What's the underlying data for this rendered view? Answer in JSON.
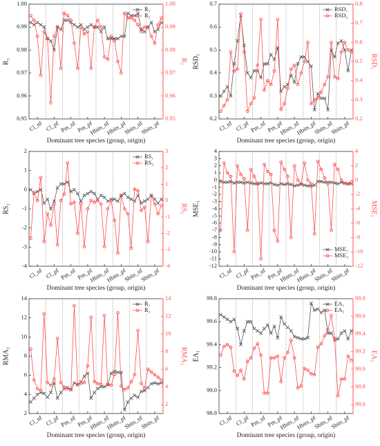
{
  "chart_data": [
    {
      "type": "line",
      "xlabel": "Dominant tree species (group, origin)",
      "ylabel": "R₁",
      "y2label": "R₂",
      "legend": "upper right",
      "categories": [
        null,
        null,
        "Cl_nf",
        null,
        null,
        null,
        null,
        "Cl_pf",
        null,
        null,
        null,
        null,
        "Pm_nf",
        null,
        null,
        null,
        null,
        "Pm_pf",
        null,
        null,
        null,
        null,
        "Hbits_nf",
        null,
        null,
        null,
        null,
        "Hbits_pf",
        null,
        null,
        null,
        null,
        "Sbits_nf",
        null,
        null,
        null,
        null,
        "Sbits_pf",
        null,
        null
      ],
      "ylim": [
        0.95,
        1
      ],
      "yticks": [
        0.95,
        0.96,
        0.97,
        0.98,
        0.99,
        {
          "value": 1,
          "label": "1.00"
        }
      ],
      "y2lim": [
        0.95,
        1
      ],
      "y2ticks": [
        0.95,
        0.96,
        0.97,
        0.98,
        0.99,
        {
          "value": 1,
          "label": "1.00"
        }
      ],
      "series": [
        {
          "name": "R₁",
          "color": "#555555",
          "marker": "x",
          "values": [
            0.992,
            0.991,
            0.992,
            0.991,
            0.99,
            0.985,
            0.984,
            0.98,
            0.99,
            0.989,
            0.993,
            0.993,
            0.992,
            0.991,
            0.99,
            0.991,
            0.989,
            0.99,
            0.991,
            0.99,
            0.99,
            0.988,
            0.99,
            0.985,
            0.985,
            0.985,
            0.985,
            0.986,
            0.986,
            0.996,
            0.995,
            0.995,
            0.996,
            0.989,
            0.988,
            0.99,
            0.992,
            0.988,
            0.989,
            0.992
          ]
        },
        {
          "name": "R₂",
          "color": "#ff4d4d",
          "marker": "o",
          "axis": "y2",
          "values": [
            0.995,
            0.993,
            0.986,
            0.969,
            0.988,
            0.985,
            0.957,
            0.986,
            0.99,
            0.972,
            0.996,
            0.995,
            0.993,
            0.983,
            0.972,
            0.99,
            0.987,
            0.988,
            0.972,
            0.99,
            0.993,
            0.99,
            0.977,
            0.976,
            0.986,
            0.984,
            0.975,
            0.97,
            0.996,
            0.994,
            0.994,
            0.993,
            0.991,
            0.988,
            0.99,
            0.99,
            0.986,
            0.983,
            0.991,
            0.994
          ]
        }
      ]
    },
    {
      "type": "line",
      "xlabel": "Dominant tree species (group, origin)",
      "ylabel": "RSD₁",
      "y2label": "RSD₂",
      "legend": "upper right",
      "categories": [
        null,
        null,
        "Cl_nf",
        null,
        null,
        null,
        null,
        "Cl_pf",
        null,
        null,
        null,
        null,
        "Pm_nf",
        null,
        null,
        null,
        null,
        "Pm_pf",
        null,
        null,
        null,
        null,
        "Hbits_nf",
        null,
        null,
        null,
        null,
        "Hbits_pf",
        null,
        null,
        null,
        null,
        "Sbits_nf",
        null,
        null,
        null,
        null,
        "Sbits_pf",
        null,
        null
      ],
      "ylim": [
        0.2,
        0.7
      ],
      "yticks": [
        0.2,
        0.3,
        0.4,
        0.5,
        0.6,
        0.7
      ],
      "y2lim": [
        0.2,
        0.8
      ],
      "y2ticks": [
        0.2,
        0.3,
        0.4,
        0.5,
        0.6,
        0.7,
        0.8
      ],
      "series": [
        {
          "name": "RSD₁",
          "color": "#555555",
          "marker": "x",
          "values": [
            0.3,
            0.32,
            0.34,
            0.3,
            0.44,
            0.54,
            0.65,
            0.52,
            0.4,
            0.38,
            0.41,
            0.41,
            0.38,
            0.44,
            0.44,
            0.48,
            0.46,
            0.51,
            0.32,
            0.34,
            0.35,
            0.39,
            0.36,
            0.44,
            0.47,
            0.47,
            0.45,
            0.43,
            0.24,
            0.31,
            0.29,
            0.29,
            0.24,
            0.5,
            0.47,
            0.53,
            0.54,
            0.5,
            0.41,
            0.5
          ]
        },
        {
          "name": "RSD₂",
          "color": "#ff4d4d",
          "marker": "o",
          "axis": "y2",
          "values": [
            0.24,
            0.27,
            0.3,
            0.55,
            0.45,
            0.46,
            0.75,
            0.55,
            0.24,
            0.28,
            0.31,
            0.48,
            0.72,
            0.35,
            0.4,
            0.38,
            0.45,
            0.72,
            0.25,
            0.28,
            0.36,
            0.46,
            0.48,
            0.38,
            0.44,
            0.5,
            0.6,
            0.28,
            0.3,
            0.31,
            0.34,
            0.38,
            0.42,
            0.6,
            0.42,
            0.41,
            0.55,
            0.6,
            0.56,
            0.55
          ]
        }
      ]
    },
    {
      "type": "line",
      "xlabel": "Dominant tree species (group, origin)",
      "ylabel": "RS₁",
      "y2label": "RS₂",
      "legend": "upper right",
      "categories": [
        null,
        null,
        "Cl_nf",
        null,
        null,
        null,
        null,
        "Cl_pf",
        null,
        null,
        null,
        null,
        "Pm_nf",
        null,
        null,
        null,
        null,
        "Pm_pf",
        null,
        null,
        null,
        null,
        "Hbits_nf",
        null,
        null,
        null,
        null,
        "Hbits_pf",
        null,
        null,
        null,
        null,
        "Sbits_nf",
        null,
        null,
        null,
        null,
        "Sbits_pf",
        null,
        null
      ],
      "ylim": [
        -4,
        2
      ],
      "yticks": [
        -4,
        -3,
        -2,
        -1,
        0,
        1,
        2
      ],
      "y2lim": [
        -4,
        3
      ],
      "y2ticks": [
        -4,
        -3,
        -2,
        -1,
        0,
        1,
        2,
        3
      ],
      "series": [
        {
          "name": "RS₁",
          "color": "#555555",
          "marker": "x",
          "values": [
            0.0,
            -0.2,
            -0.1,
            0.0,
            -0.7,
            -0.5,
            -1.0,
            -0.6,
            0.1,
            0.3,
            0.3,
            0.4,
            -0.1,
            0.0,
            -0.2,
            -0.6,
            -0.3,
            -0.2,
            -0.1,
            -0.2,
            -0.5,
            -0.3,
            -0.4,
            -0.6,
            -0.5,
            -0.5,
            -0.6,
            -0.3,
            -0.2,
            -0.4,
            -0.5,
            -0.6,
            -0.3,
            -0.7,
            -0.6,
            -0.5,
            -0.3,
            -0.5,
            -0.7,
            -0.5
          ]
        },
        {
          "name": "RS₂",
          "color": "#ff4d4d",
          "marker": "o",
          "axis": "y2",
          "values": [
            -2.3,
            0.5,
            0.0,
            1.4,
            -2.5,
            -0.8,
            -1.5,
            -0.2,
            -2.7,
            0.0,
            0.4,
            2.3,
            -0.2,
            -0.1,
            -2.0,
            -0.2,
            -2.8,
            -0.5,
            0.0,
            -0.1,
            0.0,
            -0.2,
            -2.8,
            -0.5,
            0.0,
            -1.2,
            -3.2,
            0.3,
            -0.5,
            -0.8,
            -2.9,
            0.7,
            0.6,
            -0.6,
            -0.4,
            -2.5,
            0.3,
            -0.2,
            -0.8,
            -0.3
          ]
        }
      ]
    },
    {
      "type": "line",
      "xlabel": "Dominant tree species (group, origin)",
      "ylabel": "MSE₁",
      "y2label": "MSE₂",
      "legend": "lower right",
      "categories": [
        null,
        null,
        "Cl_nf",
        null,
        null,
        null,
        null,
        "Cl_pf",
        null,
        null,
        null,
        null,
        "Pm_nf",
        null,
        null,
        null,
        null,
        "Pm_pf",
        null,
        null,
        null,
        null,
        "Hbits_nf",
        null,
        null,
        null,
        null,
        "Hbits_pf",
        null,
        null,
        null,
        null,
        "Sbits_nf",
        null,
        null,
        null,
        null,
        "Sbits_pf",
        null,
        null
      ],
      "ylim": [
        -12,
        4
      ],
      "yticks": [
        -12,
        -11,
        -10,
        -9,
        -8,
        -7,
        -6,
        -5,
        -4,
        -3,
        -2,
        -1,
        0,
        1,
        2,
        3,
        4
      ],
      "y2lim": [
        -12,
        4
      ],
      "y2ticks": [
        -12,
        -10,
        -8,
        -6,
        -4,
        -2,
        0,
        2,
        4
      ],
      "series": [
        {
          "name": "MSE₁",
          "color": "#555555",
          "marker": "x",
          "values": [
            -0.2,
            -0.3,
            -0.3,
            -0.2,
            -0.4,
            -0.3,
            -0.3,
            -0.4,
            -0.3,
            -0.4,
            -0.5,
            -0.5,
            -0.4,
            -0.5,
            -0.5,
            -0.4,
            -0.6,
            -0.7,
            -0.5,
            -0.6,
            -0.5,
            -0.6,
            -0.8,
            -0.7,
            -0.6,
            -0.7,
            -0.8,
            -0.8,
            -0.7,
            -0.2,
            -0.2,
            -0.3,
            -0.3,
            -0.3,
            -0.4,
            -0.5,
            -0.3,
            -0.4,
            -0.5,
            -0.5
          ]
        },
        {
          "name": "MSE₂",
          "color": "#ff4d4d",
          "marker": "o",
          "axis": "y2",
          "values": [
            -7.0,
            2.4,
            1.0,
            0.5,
            -10.0,
            2.0,
            0.8,
            0.2,
            -7.0,
            1.5,
            0.5,
            -0.5,
            -11.0,
            2.2,
            1.2,
            0.8,
            -7.0,
            -8.5,
            2.5,
            1.5,
            0.5,
            -8.0,
            2.0,
            0.0,
            -0.5,
            2.4,
            0.0,
            -0.5,
            -7.5,
            2.6,
            1.5,
            0.3,
            -0.5,
            -7.0,
            2.2,
            1.5,
            0.0,
            -0.5,
            -0.5,
            -0.3
          ]
        }
      ]
    },
    {
      "type": "line",
      "xlabel": "Dominant tree species (group, origin)",
      "ylabel": "RMA₁",
      "y2label": "RMA₂",
      "legend": "upper right",
      "categories": [
        null,
        null,
        "Cl_nf",
        null,
        null,
        null,
        null,
        "Cl_pf",
        null,
        null,
        null,
        null,
        "Pm_nf",
        null,
        null,
        null,
        null,
        "Pm_pf",
        null,
        null,
        null,
        null,
        "Hbits_nf",
        null,
        null,
        null,
        null,
        "Hbits_pf",
        null,
        null,
        null,
        null,
        "Sbits_nf",
        null,
        null,
        null,
        null,
        "Sbits_pf",
        null,
        null
      ],
      "ylim": [
        2,
        14
      ],
      "yticks": [
        2,
        4,
        6,
        8,
        10,
        12,
        14
      ],
      "y2lim": [
        1,
        14
      ],
      "y2ticks": [
        2,
        4,
        6,
        8,
        10,
        12,
        14
      ],
      "series": [
        {
          "name": "R₁",
          "color": "#555555",
          "marker": "x",
          "values": [
            3.2,
            3.6,
            4.0,
            4.2,
            4.1,
            3.7,
            4.2,
            5.2,
            3.6,
            4.2,
            4.6,
            4.7,
            4.5,
            5.2,
            5.0,
            5.3,
            5.9,
            6.2,
            3.6,
            4.2,
            4.6,
            4.8,
            4.8,
            5.0,
            6.2,
            6.4,
            6.3,
            6.3,
            2.4,
            3.2,
            3.6,
            3.9,
            3.7,
            4.3,
            4.4,
            4.7,
            5.1,
            5.2,
            5.1,
            5.2
          ]
        },
        {
          "name": "R₂",
          "color": "#ff4d4d",
          "marker": "o",
          "axis": "y2",
          "values": [
            8.3,
            4.8,
            3.8,
            3.6,
            12.3,
            4.5,
            4.2,
            4.9,
            9.5,
            4.5,
            4.0,
            3.8,
            3.7,
            13.2,
            4.3,
            4.4,
            4.5,
            6.4,
            11.9,
            4.6,
            4.4,
            4.3,
            12.1,
            4.3,
            4.2,
            5.4,
            12.4,
            4.1,
            3.7,
            3.9,
            4.6,
            5.4,
            10.4,
            4.4,
            3.9,
            6.0,
            5.7,
            5.4,
            5.1,
            4.8
          ]
        }
      ]
    },
    {
      "type": "line",
      "xlabel": "Dominant tree species (group, origin)",
      "ylabel": "EA₁",
      "y2label": "EA₂",
      "legend": "upper right",
      "categories": [
        null,
        null,
        "Cl_nf",
        null,
        null,
        null,
        null,
        "Cl_pf",
        null,
        null,
        null,
        null,
        "Pm_nf",
        null,
        null,
        null,
        null,
        "Pm_pf",
        null,
        null,
        null,
        null,
        "Hbits_nf",
        null,
        null,
        null,
        null,
        "Hbits_pf",
        null,
        null,
        null,
        null,
        "Sbits_nf",
        null,
        null,
        null,
        null,
        "Sbits_pf",
        null,
        null
      ],
      "ylim": [
        98.8,
        99.8
      ],
      "yticks": [
        98.8,
        {
          "value": 99,
          "label": "99.0"
        },
        99.2,
        99.4,
        99.6,
        99.8
      ],
      "y2lim": [
        98.5,
        99.8
      ],
      "y2ticks": [
        98.6,
        98.8,
        {
          "value": 99,
          "label": "99.0"
        },
        99.2,
        99.4,
        99.6,
        99.8
      ],
      "series": [
        {
          "name": "EA₁",
          "color": "#555555",
          "marker": "x",
          "values": [
            99.66,
            99.64,
            99.62,
            99.6,
            99.62,
            99.54,
            99.4,
            99.52,
            99.6,
            99.6,
            99.54,
            99.52,
            99.5,
            99.54,
            99.57,
            99.5,
            99.56,
            99.46,
            99.64,
            99.58,
            99.55,
            99.52,
            99.47,
            99.46,
            99.45,
            99.45,
            99.46,
            99.76,
            99.7,
            99.71,
            99.68,
            99.7,
            99.5,
            99.5,
            99.44,
            99.45,
            99.5,
            99.52,
            99.45,
            99.52
          ]
        },
        {
          "name": "EA₂",
          "color": "#ff4d4d",
          "marker": "o",
          "axis": "y2",
          "values": [
            99.16,
            99.26,
            99.28,
            99.25,
            98.98,
            98.93,
            98.99,
            98.89,
            99.09,
            99.13,
            99.24,
            99.29,
            99.16,
            98.73,
            98.73,
            99.13,
            99.13,
            99.15,
            98.86,
            99.13,
            99.19,
            99.33,
            99.13,
            98.79,
            98.81,
            99.01,
            98.99,
            98.95,
            98.94,
            99.25,
            99.29,
            99.38,
            99.45,
            99.61,
            99.35,
            98.7,
            98.89,
            98.89,
            99.15,
            99.1
          ]
        }
      ]
    }
  ]
}
